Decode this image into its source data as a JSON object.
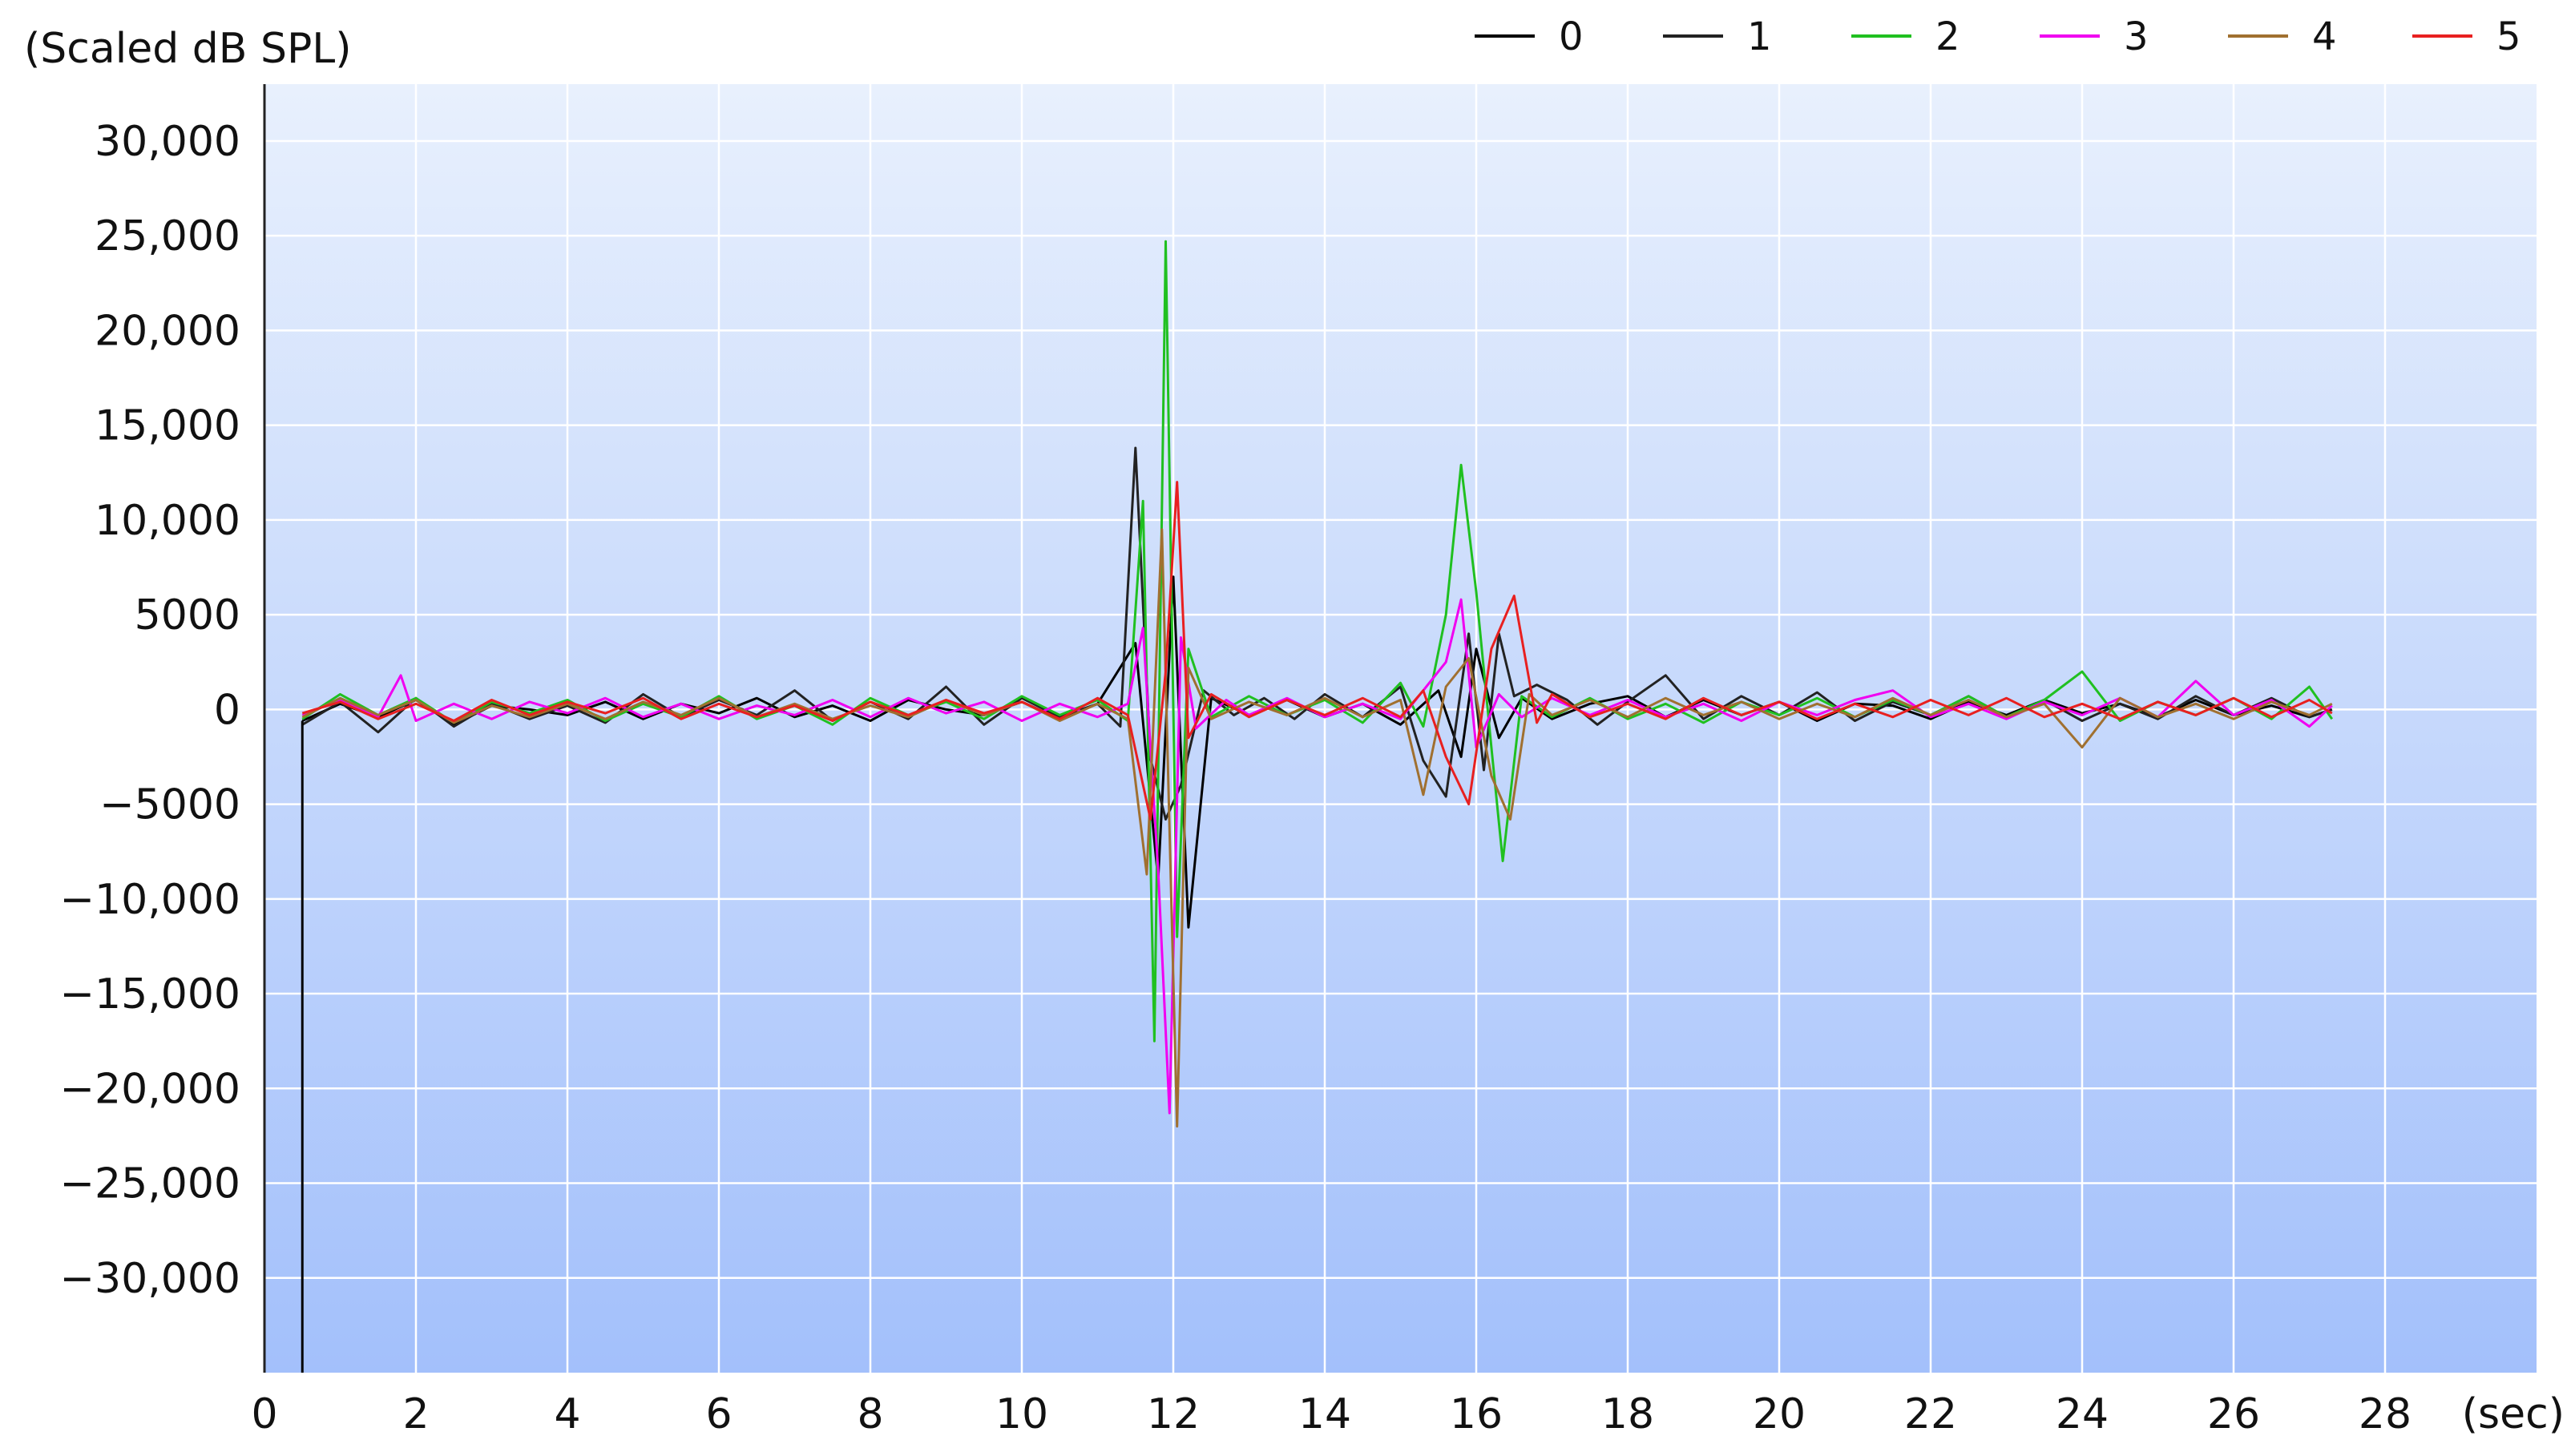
{
  "chart_data": {
    "type": "line",
    "title": "",
    "ylabel": "(Scaled dB SPL)",
    "xlabel": "(sec)",
    "xlim": [
      0,
      30
    ],
    "ylim": [
      -35000,
      33000
    ],
    "x_ticks": [
      0,
      2,
      4,
      6,
      8,
      10,
      12,
      14,
      16,
      18,
      20,
      22,
      24,
      26,
      28
    ],
    "x_tick_labels": [
      "0",
      "2",
      "4",
      "6",
      "8",
      "10",
      "12",
      "14",
      "16",
      "18",
      "20",
      "22",
      "24",
      "26",
      "28"
    ],
    "y_ticks": [
      30000,
      25000,
      20000,
      15000,
      10000,
      5000,
      0,
      -5000,
      -10000,
      -15000,
      -20000,
      -25000,
      -30000
    ],
    "y_tick_labels": [
      "30,000",
      "25,000",
      "20,000",
      "15,000",
      "10,000",
      "5000",
      "0",
      "−5000",
      "−10,000",
      "−15,000",
      "−20,000",
      "−25,000",
      "−30,000"
    ],
    "grid": true,
    "legend_position": "top-right",
    "background_gradient": [
      "#e8f0fd",
      "#a3c0fb"
    ],
    "series": [
      {
        "name": "0",
        "color": "#000000",
        "x": [
          0.5,
          1.0,
          1.5,
          2.0,
          2.5,
          3.0,
          3.5,
          4.0,
          4.5,
          5.0,
          5.5,
          6.0,
          6.5,
          7.0,
          7.5,
          8.0,
          8.5,
          9.0,
          9.5,
          10.0,
          10.5,
          11.0,
          11.5,
          11.8,
          12.0,
          12.2,
          12.5,
          13.0,
          13.5,
          14.0,
          14.5,
          15.0,
          15.5,
          15.8,
          16.0,
          16.3,
          16.6,
          17.0,
          17.5,
          18.0,
          18.5,
          19.0,
          19.5,
          20.0,
          20.5,
          21.0,
          21.5,
          22.0,
          22.5,
          23.0,
          23.5,
          24.0,
          24.5,
          25.0,
          25.5,
          26.0,
          26.5,
          27.0,
          27.3
        ],
        "y": [
          -600,
          300,
          -400,
          500,
          -800,
          200,
          0,
          -300,
          400,
          -500,
          300,
          -200,
          600,
          -400,
          200,
          -600,
          500,
          0,
          -300,
          400,
          -500,
          300,
          3500,
          -9000,
          7000,
          -11500,
          600,
          -300,
          500,
          -400,
          300,
          -800,
          1000,
          -2500,
          3200,
          -1500,
          600,
          -500,
          300,
          700,
          -400,
          500,
          -300,
          400,
          -600,
          300,
          200,
          -500,
          400,
          -300,
          500,
          -200,
          300,
          -400,
          500,
          -300,
          200,
          -400,
          0
        ]
      },
      {
        "name": "1",
        "color": "#222222",
        "x": [
          0.5,
          1.0,
          1.5,
          2.0,
          2.5,
          3.0,
          3.5,
          4.0,
          4.5,
          5.0,
          5.5,
          6.0,
          6.5,
          7.0,
          7.5,
          8.0,
          8.5,
          9.0,
          9.5,
          10.0,
          10.5,
          11.0,
          11.3,
          11.5,
          11.7,
          11.9,
          12.1,
          12.4,
          12.8,
          13.2,
          13.6,
          14.0,
          14.5,
          15.0,
          15.3,
          15.6,
          15.9,
          16.1,
          16.3,
          16.5,
          16.8,
          17.2,
          17.6,
          18.0,
          18.5,
          19.0,
          19.5,
          20.0,
          20.5,
          21.0,
          21.5,
          22.0,
          22.5,
          23.0,
          23.5,
          24.0,
          24.5,
          25.0,
          25.5,
          26.0,
          26.5,
          27.0,
          27.3
        ],
        "y": [
          -800,
          400,
          -1200,
          600,
          -900,
          300,
          -500,
          200,
          -700,
          800,
          -400,
          500,
          -300,
          1000,
          -600,
          400,
          -500,
          1200,
          -800,
          600,
          -400,
          300,
          -900,
          13800,
          -2600,
          -5800,
          -4000,
          1000,
          -300,
          600,
          -500,
          800,
          -400,
          1200,
          -2700,
          -4600,
          4000,
          -3200,
          4000,
          700,
          1300,
          500,
          -800,
          400,
          1800,
          -500,
          700,
          -300,
          900,
          -600,
          400,
          -300,
          700,
          -400,
          500,
          -600,
          300,
          -500,
          700,
          -300,
          600,
          -400,
          0
        ]
      },
      {
        "name": "2",
        "color": "#20c020",
        "x": [
          0.5,
          1.0,
          1.5,
          2.0,
          2.5,
          3.0,
          3.5,
          4.0,
          4.5,
          5.0,
          5.5,
          6.0,
          6.5,
          7.0,
          7.5,
          8.0,
          8.5,
          9.0,
          9.5,
          10.0,
          10.5,
          11.0,
          11.4,
          11.6,
          11.75,
          11.9,
          12.05,
          12.2,
          12.5,
          13.0,
          13.5,
          14.0,
          14.5,
          15.0,
          15.3,
          15.6,
          15.8,
          16.0,
          16.2,
          16.35,
          16.6,
          17.0,
          17.5,
          18.0,
          18.5,
          19.0,
          19.5,
          20.0,
          20.5,
          21.0,
          21.5,
          22.0,
          22.5,
          23.0,
          23.5,
          24.0,
          24.5,
          25.0,
          25.5,
          26.0,
          26.5,
          27.0,
          27.3
        ],
        "y": [
          -500,
          800,
          -300,
          600,
          -700,
          400,
          -200,
          500,
          -600,
          300,
          -400,
          700,
          -500,
          200,
          -800,
          600,
          -300,
          400,
          -500,
          700,
          -300,
          500,
          -600,
          11000,
          -17500,
          24700,
          -12000,
          3200,
          -400,
          700,
          -300,
          500,
          -700,
          1400,
          -900,
          5000,
          12900,
          6200,
          -2000,
          -8000,
          700,
          -400,
          600,
          -500,
          300,
          -700,
          400,
          -300,
          600,
          -400,
          500,
          -300,
          700,
          -400,
          500,
          2000,
          -600,
          400,
          -300,
          600,
          -500,
          1200,
          -500
        ]
      },
      {
        "name": "3",
        "color": "#f000f0",
        "x": [
          0.5,
          1.0,
          1.5,
          1.8,
          2.0,
          2.5,
          3.0,
          3.5,
          4.0,
          4.5,
          5.0,
          5.5,
          6.0,
          6.5,
          7.0,
          7.5,
          8.0,
          8.5,
          9.0,
          9.5,
          10.0,
          10.5,
          11.0,
          11.4,
          11.6,
          11.8,
          11.95,
          12.1,
          12.3,
          12.7,
          13.0,
          13.5,
          14.0,
          14.5,
          15.0,
          15.3,
          15.6,
          15.8,
          16.0,
          16.3,
          16.6,
          17.0,
          17.5,
          18.0,
          18.5,
          19.0,
          19.5,
          20.0,
          20.5,
          21.0,
          21.5,
          22.0,
          22.5,
          23.0,
          23.5,
          24.0,
          24.5,
          25.0,
          25.5,
          26.0,
          26.5,
          27.0,
          27.3
        ],
        "y": [
          -300,
          500,
          -400,
          1800,
          -600,
          300,
          -500,
          400,
          -200,
          600,
          -400,
          300,
          -500,
          200,
          -300,
          500,
          -400,
          600,
          -200,
          400,
          -600,
          300,
          -400,
          300,
          4300,
          -8500,
          -21300,
          3800,
          -1000,
          500,
          -300,
          600,
          -400,
          300,
          -500,
          1000,
          2500,
          5800,
          -2000,
          800,
          -400,
          600,
          -300,
          500,
          -400,
          300,
          -600,
          400,
          -300,
          500,
          1000,
          -400,
          300,
          -500,
          400,
          -300,
          600,
          -400,
          1500,
          -300,
          500,
          -900,
          200
        ]
      },
      {
        "name": "4",
        "color": "#a07030",
        "x": [
          0.5,
          1.0,
          1.5,
          2.0,
          2.5,
          3.0,
          3.5,
          4.0,
          4.5,
          5.0,
          5.5,
          6.0,
          6.5,
          7.0,
          7.5,
          8.0,
          8.5,
          9.0,
          9.5,
          10.0,
          10.5,
          11.0,
          11.4,
          11.65,
          11.85,
          12.05,
          12.2,
          12.5,
          13.0,
          13.5,
          14.0,
          14.5,
          15.0,
          15.3,
          15.6,
          15.9,
          16.2,
          16.45,
          16.7,
          17.0,
          17.5,
          18.0,
          18.5,
          19.0,
          19.5,
          20.0,
          20.5,
          21.0,
          21.5,
          22.0,
          22.5,
          23.0,
          23.5,
          24.0,
          24.5,
          25.0,
          25.5,
          26.0,
          26.5,
          27.0,
          27.3
        ],
        "y": [
          -400,
          600,
          -300,
          500,
          -700,
          200,
          -400,
          300,
          -500,
          400,
          -300,
          600,
          -400,
          300,
          -500,
          200,
          -400,
          500,
          -300,
          400,
          -600,
          300,
          -500,
          -8700,
          9500,
          -22000,
          2200,
          -500,
          400,
          -300,
          600,
          -400,
          500,
          -4500,
          1200,
          2700,
          -3500,
          -5800,
          800,
          -300,
          500,
          -400,
          600,
          -300,
          400,
          -500,
          300,
          -400,
          600,
          -300,
          500,
          -400,
          300,
          -2000,
          600,
          -400,
          300,
          -500,
          400,
          -300,
          300
        ]
      },
      {
        "name": "5",
        "color": "#e82020",
        "x": [
          0.5,
          1.0,
          1.5,
          2.0,
          2.5,
          3.0,
          3.5,
          4.0,
          4.5,
          5.0,
          5.5,
          6.0,
          6.5,
          7.0,
          7.5,
          8.0,
          8.5,
          9.0,
          9.5,
          10.0,
          10.5,
          11.0,
          11.4,
          11.7,
          11.9,
          12.05,
          12.2,
          12.5,
          13.0,
          13.5,
          14.0,
          14.5,
          15.0,
          15.3,
          15.6,
          15.9,
          16.2,
          16.5,
          16.8,
          17.0,
          17.5,
          18.0,
          18.5,
          19.0,
          19.5,
          20.0,
          20.5,
          21.0,
          21.5,
          22.0,
          22.5,
          23.0,
          23.5,
          24.0,
          24.5,
          25.0,
          25.5,
          26.0,
          26.5,
          27.0,
          27.3
        ],
        "y": [
          -200,
          400,
          -500,
          300,
          -600,
          500,
          -300,
          400,
          -200,
          600,
          -500,
          300,
          -400,
          200,
          -600,
          400,
          -300,
          500,
          -200,
          400,
          -500,
          600,
          -300,
          -5800,
          2000,
          12000,
          -1500,
          800,
          -400,
          500,
          -300,
          600,
          -400,
          1000,
          -2500,
          -5000,
          3200,
          6000,
          -700,
          800,
          -400,
          300,
          -500,
          600,
          -300,
          400,
          -500,
          300,
          -400,
          500,
          -300,
          600,
          -400,
          300,
          -500,
          400,
          -300,
          600,
          -400,
          500,
          -200
        ]
      }
    ]
  }
}
